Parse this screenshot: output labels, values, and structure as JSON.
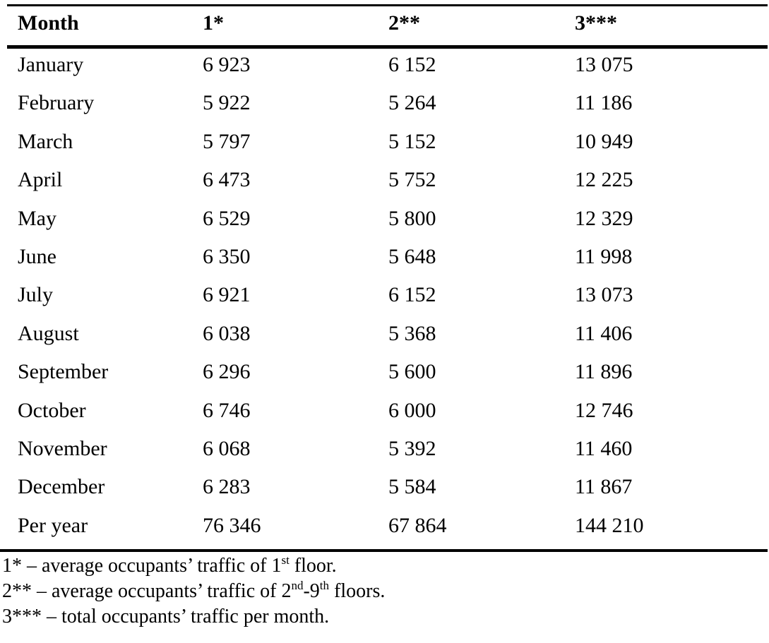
{
  "table": {
    "headers": [
      "Month",
      "1*",
      "2**",
      "3***"
    ],
    "rows": [
      [
        "January",
        "6 923",
        "6 152",
        "13 075"
      ],
      [
        "February",
        "5 922",
        "5 264",
        "11 186"
      ],
      [
        "March",
        "5 797",
        "5 152",
        "10 949"
      ],
      [
        "April",
        "6 473",
        "5 752",
        "12 225"
      ],
      [
        "May",
        "6 529",
        "5 800",
        "12 329"
      ],
      [
        "June",
        "6 350",
        "5 648",
        "11 998"
      ],
      [
        "July",
        "6 921",
        "6 152",
        "13 073"
      ],
      [
        "August",
        "6 038",
        "5 368",
        "11 406"
      ],
      [
        "September",
        "6 296",
        "5 600",
        "11 896"
      ],
      [
        "October",
        "6 746",
        "6 000",
        "12 746"
      ],
      [
        "November",
        "6 068",
        "5 392",
        "11 460"
      ],
      [
        "December",
        "6 283",
        "5 584",
        "11 867"
      ],
      [
        "Per year",
        "76 346",
        "67 864",
        "144 210"
      ]
    ]
  },
  "footnotes": {
    "note1": {
      "prefix": "1* – average occupants’ traffic of 1",
      "sup": "st",
      "suffix": " floor."
    },
    "note2": {
      "prefix": "2** – average occupants’ traffic of 2",
      "sup1": "nd",
      "middle": "-9",
      "sup2": "th",
      "suffix": " floors."
    },
    "note3": {
      "text": "3*** – total occupants’ traffic per month."
    }
  }
}
